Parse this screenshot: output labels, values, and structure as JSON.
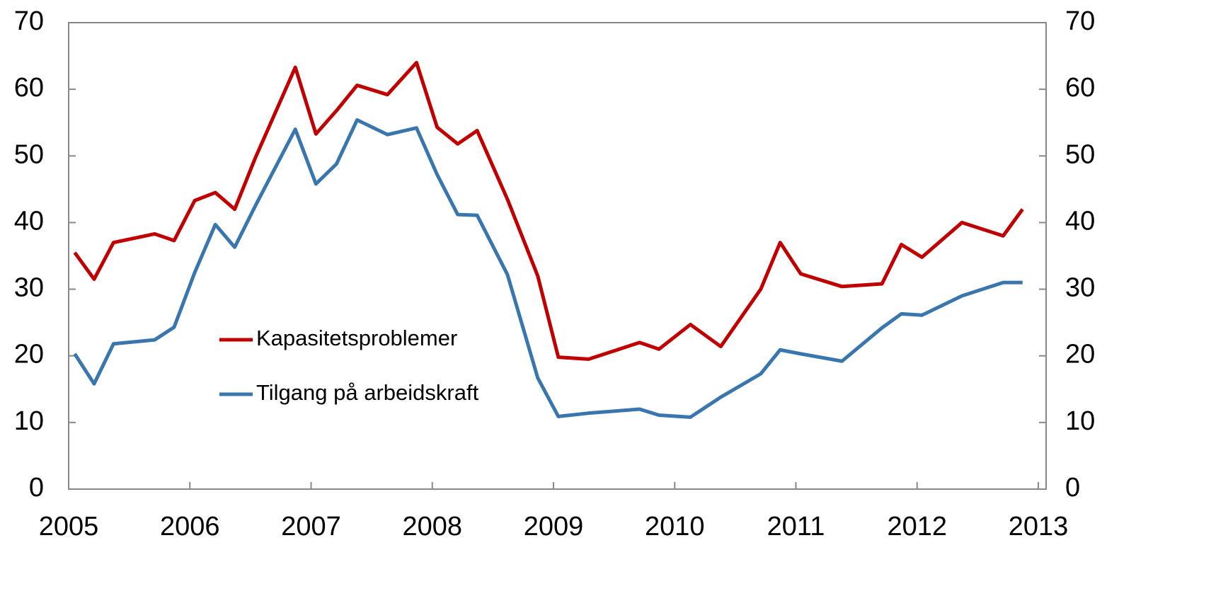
{
  "chart_data": {
    "type": "line",
    "x": [
      2005.05,
      2005.21,
      2005.37,
      2005.71,
      2005.87,
      2006.04,
      2006.21,
      2006.37,
      2006.54,
      2006.87,
      2007.04,
      2007.21,
      2007.38,
      2007.63,
      2007.87,
      2008.04,
      2008.21,
      2008.37,
      2008.62,
      2008.87,
      2009.04,
      2009.29,
      2009.71,
      2009.87,
      2010.13,
      2010.38,
      2010.71,
      2010.87,
      2011.04,
      2011.38,
      2011.71,
      2011.87,
      2012.04,
      2012.37,
      2012.71,
      2012.87
    ],
    "series": [
      {
        "name": "Kapasitetsproblemer",
        "color": "#c00000",
        "values": [
          35.5,
          31.5,
          37,
          38.3,
          37.3,
          43.3,
          44.5,
          42,
          49.7,
          63.3,
          53.3,
          56.8,
          60.6,
          59.2,
          64,
          54.3,
          51.8,
          53.8,
          43.5,
          32,
          19.8,
          19.5,
          22,
          21,
          24.7,
          21.4,
          30,
          37,
          32.3,
          30.4,
          30.8,
          36.7,
          34.8,
          40,
          38,
          42
        ]
      },
      {
        "name": "Tilgang på arbeidskraft",
        "color": "#3a76ae",
        "values": [
          20.3,
          15.8,
          21.8,
          22.4,
          24.3,
          32.5,
          39.7,
          36.3,
          42.5,
          54,
          45.8,
          48.8,
          55.4,
          53.2,
          54.2,
          47.2,
          41.2,
          41.1,
          32.2,
          16.7,
          10.9,
          11.4,
          12,
          11.1,
          10.8,
          13.8,
          17.3,
          20.9,
          20.3,
          19.2,
          24.2,
          26.3,
          26.1,
          29,
          31,
          31
        ]
      }
    ],
    "xlim": [
      2005,
      2013
    ],
    "xticks": [
      2005,
      2006,
      2007,
      2008,
      2009,
      2010,
      2011,
      2012,
      2013
    ],
    "ylim": [
      0,
      70
    ],
    "yticks": [
      0,
      10,
      20,
      30,
      40,
      50,
      60,
      70
    ],
    "y2lim": [
      0,
      70
    ],
    "y2ticks": [
      0,
      10,
      20,
      30,
      40,
      50,
      60,
      70
    ]
  }
}
